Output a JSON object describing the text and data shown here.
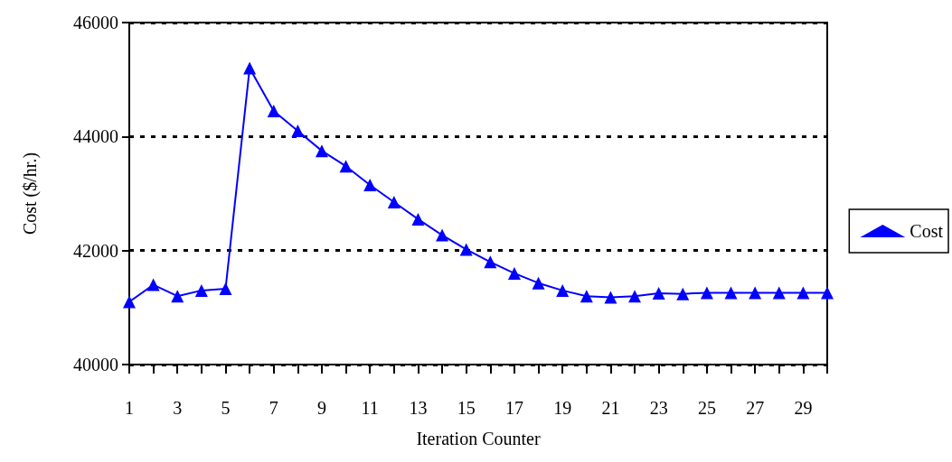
{
  "chart_data": {
    "type": "line",
    "xlabel": "Iteration Counter",
    "ylabel": "Cost ($/hr.)",
    "x": [
      1,
      2,
      3,
      4,
      5,
      6,
      7,
      8,
      9,
      10,
      11,
      12,
      13,
      14,
      15,
      16,
      17,
      18,
      19,
      20,
      21,
      22,
      23,
      24,
      25,
      26,
      27,
      28,
      29,
      30
    ],
    "series": [
      {
        "name": "Cost",
        "color": "#0000ff",
        "values": [
          41100,
          41400,
          41200,
          41300,
          41330,
          45200,
          44450,
          44100,
          43750,
          43480,
          43150,
          42850,
          42550,
          42270,
          42020,
          41800,
          41600,
          41430,
          41300,
          41200,
          41180,
          41200,
          41250,
          41240,
          41260,
          41260,
          41260,
          41260,
          41260,
          41260
        ]
      }
    ],
    "xlim": [
      1,
      30
    ],
    "xticks": [
      1,
      {
        "value": 2,
        "label": null
      },
      3,
      {
        "value": 4,
        "label": null
      },
      5,
      {
        "value": 6,
        "label": null
      },
      7,
      {
        "value": 8,
        "label": null
      },
      9,
      {
        "value": 10,
        "label": null
      },
      11,
      {
        "value": 12,
        "label": null
      },
      13,
      {
        "value": 14,
        "label": null
      },
      15,
      {
        "value": 16,
        "label": null
      },
      17,
      {
        "value": 18,
        "label": null
      },
      19,
      {
        "value": 20,
        "label": null
      },
      21,
      {
        "value": 22,
        "label": null
      },
      23,
      {
        "value": 24,
        "label": null
      },
      25,
      {
        "value": 26,
        "label": null
      },
      27,
      {
        "value": 28,
        "label": null
      },
      29,
      {
        "value": 30,
        "label": null
      }
    ],
    "ylim": [
      40000,
      46000
    ],
    "yticks": [
      40000,
      42000,
      44000,
      46000
    ],
    "grid": "y",
    "legend": "right",
    "marker": "triangle",
    "line_style": "solid"
  }
}
